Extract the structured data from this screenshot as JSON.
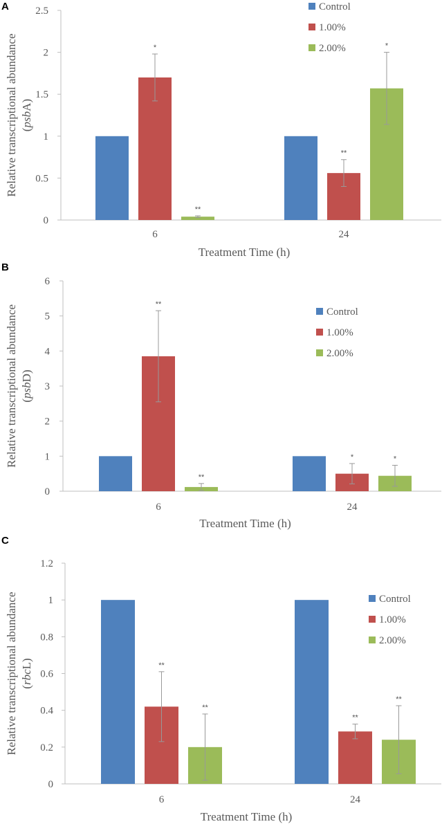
{
  "figure": {
    "panels": [
      "A",
      "B",
      "C"
    ]
  },
  "colors": {
    "control": "#4F81BD",
    "one_pct": "#C0504D",
    "two_pct": "#9BBB59",
    "axis": "#bfbfbf",
    "error": "#999999",
    "text": "#595959"
  },
  "chart_data": [
    {
      "type": "bar",
      "panel": "A",
      "title": "",
      "categories": [
        "6",
        "24"
      ],
      "xlabel": "Treatment Time (h)",
      "ylabel_prefix": "Relative transcriptional abundance",
      "ylabel_gene": "psbA",
      "ylim": [
        0,
        2.5
      ],
      "yticks": [
        "0",
        "0.5",
        "1",
        "1.5",
        "2",
        "2.5"
      ],
      "legend_position": "top-right",
      "series": [
        {
          "name": "Control",
          "values": [
            1,
            1
          ],
          "errors": [
            0,
            0
          ],
          "significance": [
            "",
            ""
          ]
        },
        {
          "name": "1.00%",
          "values": [
            1.7,
            0.56
          ],
          "errors": [
            0.28,
            0.16
          ],
          "significance": [
            "*",
            "**"
          ]
        },
        {
          "name": "2.00%",
          "values": [
            0.04,
            1.57
          ],
          "errors": [
            0.01,
            0.43
          ],
          "significance": [
            "**",
            "*"
          ]
        }
      ]
    },
    {
      "type": "bar",
      "panel": "B",
      "title": "",
      "categories": [
        "6",
        "24"
      ],
      "xlabel": "Treatment Time (h)",
      "ylabel_prefix": "Relative transcriptional abundance",
      "ylabel_gene": "psbD",
      "ylim": [
        0,
        6
      ],
      "yticks": [
        "0",
        "1",
        "2",
        "3",
        "4",
        "5",
        "6"
      ],
      "legend_position": "right",
      "series": [
        {
          "name": "Control",
          "values": [
            1,
            1
          ],
          "errors": [
            0,
            0
          ],
          "significance": [
            "",
            ""
          ]
        },
        {
          "name": "1.00%",
          "values": [
            3.85,
            0.5
          ],
          "errors": [
            1.3,
            0.29
          ],
          "significance": [
            "**",
            "*"
          ]
        },
        {
          "name": "2.00%",
          "values": [
            0.12,
            0.44
          ],
          "errors": [
            0.1,
            0.3
          ],
          "significance": [
            "**",
            "*"
          ]
        }
      ]
    },
    {
      "type": "bar",
      "panel": "C",
      "title": "",
      "categories": [
        "6",
        "24"
      ],
      "xlabel": "Treatment Time (h)",
      "ylabel_prefix": "Relative transcriptional abundance",
      "ylabel_gene": "rbcL",
      "ylim": [
        0,
        1.2
      ],
      "yticks": [
        "0",
        "0.2",
        "0.4",
        "0.6",
        "0.8",
        "1",
        "1.2"
      ],
      "legend_position": "right",
      "series": [
        {
          "name": "Control",
          "values": [
            1,
            1
          ],
          "errors": [
            0,
            0
          ],
          "significance": [
            "",
            ""
          ]
        },
        {
          "name": "1.00%",
          "values": [
            0.42,
            0.285
          ],
          "errors": [
            0.19,
            0.04
          ],
          "significance": [
            "**",
            "**"
          ]
        },
        {
          "name": "2.00%",
          "values": [
            0.2,
            0.24
          ],
          "errors": [
            0.18,
            0.185
          ],
          "significance": [
            "**",
            "**"
          ]
        }
      ]
    }
  ]
}
